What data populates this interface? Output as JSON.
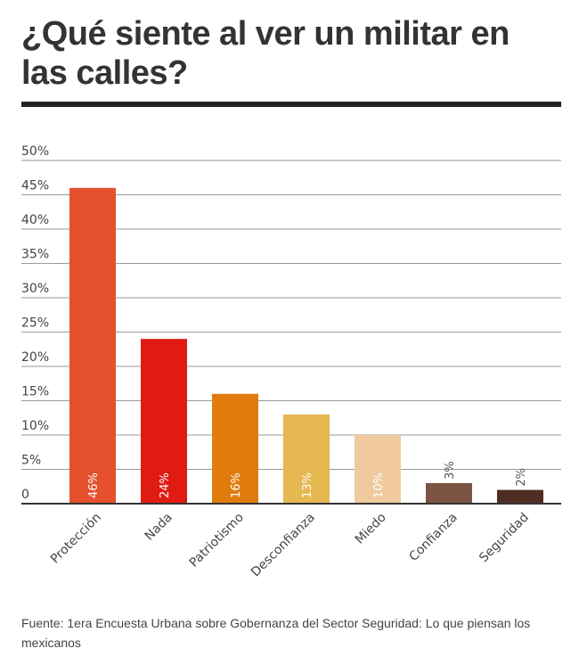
{
  "title": "¿Qué siente al ver un militar en las calles?",
  "source": "Fuente:  1era Encuesta Urbana sobre Gobernanza del Sector Seguridad: Lo que piensan los mexicanos",
  "chart_data": {
    "type": "bar",
    "title": "¿Qué siente al ver un militar en las calles?",
    "xlabel": "",
    "ylabel": "",
    "ylim": [
      0,
      50
    ],
    "y_ticks": [
      {
        "value": 0,
        "label": "0"
      },
      {
        "value": 5,
        "label": "5%"
      },
      {
        "value": 10,
        "label": "10%"
      },
      {
        "value": 15,
        "label": "15%"
      },
      {
        "value": 20,
        "label": "20%"
      },
      {
        "value": 25,
        "label": "25%"
      },
      {
        "value": 30,
        "label": "30%"
      },
      {
        "value": 35,
        "label": "35%"
      },
      {
        "value": 40,
        "label": "40%"
      },
      {
        "value": 45,
        "label": "45%"
      },
      {
        "value": 50,
        "label": "50%"
      }
    ],
    "grid": true,
    "categories": [
      "Protección",
      "Nada",
      "Patriotismo",
      "Desconfianza",
      "Miedo",
      "Confianza",
      "Seguridad"
    ],
    "values": [
      46,
      24,
      16,
      13,
      10,
      3,
      2
    ],
    "data_labels": [
      "46%",
      "24%",
      "16%",
      "13%",
      "10%",
      "3%",
      "2%"
    ],
    "colors": [
      "#e5502e",
      "#e01b12",
      "#e07b0c",
      "#e6b852",
      "#f0c99e",
      "#7b5443",
      "#4f2d22"
    ],
    "label_colors": [
      "#ffffff",
      "#ffffff",
      "#ffffff",
      "#ffffff",
      "#ffffff",
      "#555555",
      "#555555"
    ]
  }
}
